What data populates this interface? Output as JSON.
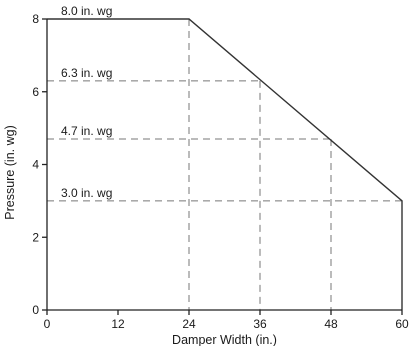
{
  "chart_data": {
    "type": "line",
    "xlabel": "Damper Width (in.)",
    "ylabel": "Pressure (in. wg)",
    "xlim": [
      0,
      60
    ],
    "ylim": [
      0,
      8
    ],
    "x_ticks": [
      0,
      12,
      24,
      36,
      48,
      60
    ],
    "y_ticks": [
      0,
      2,
      4,
      6,
      8
    ],
    "grid": false,
    "series": [
      {
        "x": [
          0,
          24,
          60,
          60
        ],
        "y": [
          8.0,
          8.0,
          3.0,
          0
        ]
      }
    ],
    "reference_lines": [
      {
        "label": "8.0 in. wg",
        "y": 8.0,
        "x_end": 24
      },
      {
        "label": "6.3 in. wg",
        "y": 6.3,
        "x_end": 36
      },
      {
        "label": "4.7 in. wg",
        "y": 4.7,
        "x_end": 48
      },
      {
        "label": "3.0 in. wg",
        "y": 3.0,
        "x_end": 60
      }
    ]
  }
}
